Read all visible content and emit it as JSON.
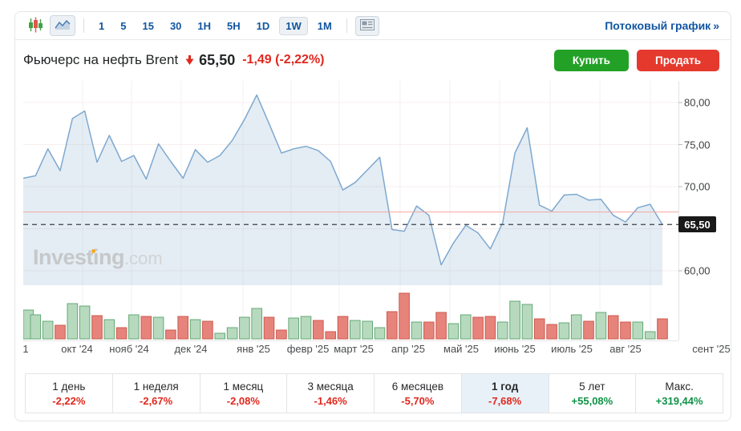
{
  "toolbar": {
    "timeframes": [
      "1",
      "5",
      "15",
      "30",
      "1H",
      "5H",
      "1D",
      "1W",
      "1M"
    ],
    "selected_timeframe": "1W",
    "streaming_link": "Потоковый график",
    "streaming_arrow": "»",
    "icons": [
      "candlestick-chart",
      "area-chart",
      "news-panel"
    ]
  },
  "header": {
    "title": "Фьючерс на нефть Brent",
    "price_direction_icon": "down-arrow",
    "price": "65,50",
    "change": "-1,49",
    "change_pct": "(-2,22%)",
    "buy_label": "Купить",
    "sell_label": "Продать"
  },
  "watermark": {
    "name": "Investing",
    "suffix": ".com"
  },
  "chart_data": {
    "type": "area",
    "interval": "1W",
    "x_labels": [
      "1",
      "окт '24",
      "нояб '24",
      "дек '24",
      "янв '25",
      "февр '25",
      "март '25",
      "апр '25",
      "май '25",
      "июнь '25",
      "июль '25",
      "авг '25",
      "сент '25"
    ],
    "y_tick_values": [
      80,
      75,
      70,
      60
    ],
    "y_tick_labels": [
      "80,00",
      "75,00",
      "70,00",
      "60,00"
    ],
    "y_gridline_values": [
      80,
      75,
      70,
      65,
      60
    ],
    "y_range_price_pane": [
      55.7,
      82.6
    ],
    "series": [
      {
        "name": "Цена",
        "values": [
          71.0,
          71.3,
          74.5,
          71.9,
          78.1,
          79.0,
          72.9,
          76.1,
          73.0,
          73.7,
          70.9,
          75.1,
          73.0,
          71.0,
          74.4,
          72.9,
          73.7,
          75.5,
          78.0,
          80.9,
          77.5,
          74.0,
          74.5,
          74.8,
          74.3,
          73.0,
          69.6,
          70.5,
          72.0,
          73.5,
          64.9,
          64.7,
          67.7,
          66.6,
          60.7,
          63.3,
          65.4,
          64.5,
          62.6,
          65.7,
          74.0,
          77.0,
          67.8,
          67.1,
          69.0,
          69.1,
          68.4,
          68.5,
          66.6,
          65.8,
          67.5,
          67.9,
          65.5
        ]
      }
    ],
    "volume": {
      "unit": "relative",
      "values": [
        36,
        30,
        22,
        17,
        44,
        41,
        29,
        24,
        14,
        30,
        28,
        27,
        11,
        28,
        24,
        22,
        7,
        14,
        27,
        38,
        27,
        11,
        26,
        28,
        23,
        9,
        28,
        23,
        22,
        14,
        34,
        57,
        21,
        21,
        33,
        19,
        30,
        27,
        28,
        21,
        47,
        43,
        25,
        18,
        20,
        30,
        22,
        33,
        29,
        21,
        21,
        9,
        25
      ],
      "directions": [
        "up",
        "up",
        "up",
        "down",
        "up",
        "up",
        "down",
        "up",
        "down",
        "up",
        "down",
        "up",
        "down",
        "down",
        "up",
        "down",
        "up",
        "up",
        "up",
        "up",
        "down",
        "down",
        "up",
        "up",
        "down",
        "down",
        "down",
        "up",
        "up",
        "up",
        "down",
        "down",
        "up",
        "down",
        "down",
        "up",
        "up",
        "down",
        "down",
        "up",
        "up",
        "up",
        "down",
        "down",
        "up",
        "up",
        "down",
        "up",
        "down",
        "down",
        "up",
        "up",
        "down"
      ]
    },
    "current_price": 65.5,
    "current_price_label": "65,50",
    "previous_close": 66.99,
    "grid": true,
    "legend": false
  },
  "performance": {
    "cells": [
      {
        "label": "1 день",
        "value": "-2,22%",
        "trend": "down",
        "selected": false
      },
      {
        "label": "1 неделя",
        "value": "-2,67%",
        "trend": "down",
        "selected": false
      },
      {
        "label": "1 месяц",
        "value": "-2,08%",
        "trend": "down",
        "selected": false
      },
      {
        "label": "3 месяца",
        "value": "-1,46%",
        "trend": "down",
        "selected": false
      },
      {
        "label": "6 месяцев",
        "value": "-5,70%",
        "trend": "down",
        "selected": false
      },
      {
        "label": "1 год",
        "value": "-7,68%",
        "trend": "down",
        "selected": true
      },
      {
        "label": "5 лет",
        "value": "+55,08%",
        "trend": "up",
        "selected": false
      },
      {
        "label": "Макс.",
        "value": "+319,44%",
        "trend": "up",
        "selected": false
      }
    ]
  },
  "colors": {
    "accent_blue": "#1256a0",
    "negative_red": "#e0281e",
    "positive_green": "#0f9247",
    "buy_button": "#23a127",
    "sell_button": "#e5392e",
    "price_line": "#7ea8cf",
    "area_fill": "rgba(134,171,206,0.22)",
    "volume_up_fill": "#b7dabe",
    "volume_up_stroke": "#63a875",
    "volume_down_fill": "#e6847c",
    "volume_down_stroke": "#cd584e",
    "prev_close_line": "#f2a6a0",
    "current_price_line": "#3a3f45",
    "badge_bg": "#191919"
  }
}
